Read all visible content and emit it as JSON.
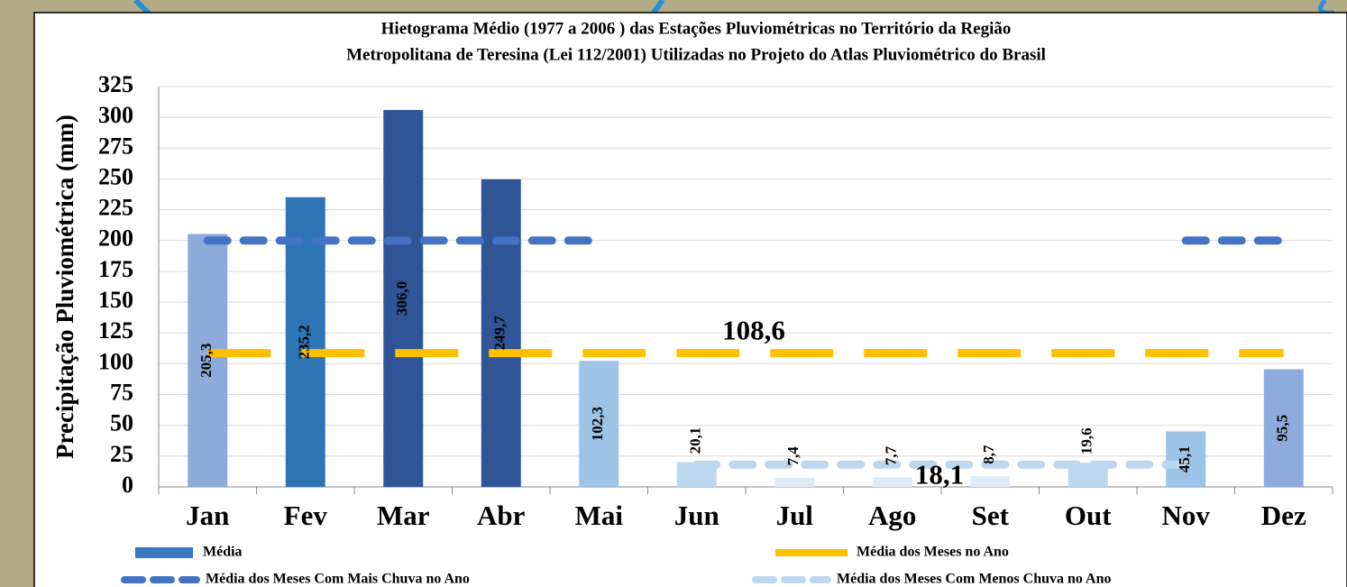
{
  "chart_data": {
    "type": "bar",
    "title": [
      "Hietograma Médio (1977 a 2006 ) das Estações Pluviométricas no Território da Região",
      "Metropolitana de Teresina (Lei 112/2001) Utilizadas no Projeto do Atlas Pluviométrico do Brasil"
    ],
    "y_label": "Precipitação Pluviométrica (mm)",
    "categories": [
      "Jan",
      "Fev",
      "Mar",
      "Abr",
      "Mai",
      "Jun",
      "Jul",
      "Ago",
      "Set",
      "Out",
      "Nov",
      "Dez"
    ],
    "series": [
      {
        "name": "Média",
        "type": "bar",
        "color": "#3a78c0",
        "colors": [
          "#8eaadb",
          "#2e75b6",
          "#2f5597",
          "#2f5597",
          "#9dc3e6",
          "#bdd7ee",
          "#deebf7",
          "#deebf7",
          "#deebf7",
          "#bdd7ee",
          "#9dc3e6",
          "#8faadc"
        ],
        "values": [
          205.3,
          235.2,
          306.0,
          249.7,
          102.3,
          20.1,
          7.4,
          7.7,
          8.7,
          19.6,
          45.1,
          95.5
        ],
        "value_labels": [
          "205,3",
          "235,2",
          "306,0",
          "249,7",
          "102,3",
          "20,1",
          "7,4",
          "7,7",
          "8,7",
          "19,6",
          "45,1",
          "95,5"
        ]
      },
      {
        "name": "Média dos Meses no Ano",
        "type": "line",
        "color": "#ffc000",
        "label": "108,6",
        "values": [
          108.6,
          108.6,
          108.6,
          108.6,
          108.6,
          108.6,
          108.6,
          108.6,
          108.6,
          108.6,
          108.6,
          108.6
        ]
      },
      {
        "name": "Média dos Meses Com Mais Chuva no Ano",
        "type": "line",
        "color": "#4472c4",
        "values": [
          200,
          200,
          200,
          200,
          200,
          null,
          null,
          null,
          null,
          null,
          200,
          200
        ]
      },
      {
        "name": "Média dos Meses Com Menos Chuva no Ano",
        "type": "line",
        "color": "#bdd7ee",
        "label": "18,1",
        "values": [
          null,
          null,
          null,
          null,
          null,
          18.1,
          18.1,
          18.1,
          18.1,
          18.1,
          18.1,
          null
        ]
      }
    ],
    "ylim": [
      0,
      325
    ],
    "yticks": [
      0,
      25,
      50,
      75,
      100,
      125,
      150,
      175,
      200,
      225,
      250,
      275,
      300,
      325
    ],
    "grid": true
  }
}
